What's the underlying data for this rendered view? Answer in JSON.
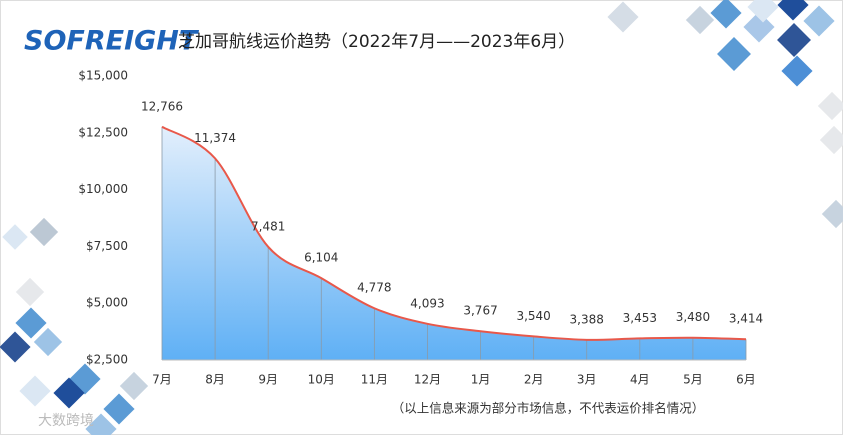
{
  "brand": {
    "logo": "SOFREIGHT",
    "watermark": "大数跨境"
  },
  "chart_data": {
    "type": "area-line",
    "title": "芝加哥航线运价趋势（2022年7月——2023年6月）",
    "note": "（以上信息来源为部分市场信息，不代表运价排名情况）",
    "categories": [
      "7月",
      "8月",
      "9月",
      "10月",
      "11月",
      "12月",
      "1月",
      "2月",
      "3月",
      "4月",
      "5月",
      "6月"
    ],
    "values": [
      12766,
      11374,
      7481,
      6104,
      4778,
      4093,
      3767,
      3540,
      3388,
      3453,
      3480,
      3414
    ],
    "value_labels": [
      "12,766",
      "11,374",
      "7,481",
      "6,104",
      "4,778",
      "4,093",
      "3,767",
      "3,540",
      "3,388",
      "3,453",
      "3,480",
      "3,414"
    ],
    "color": "#e8584a",
    "ylim": [
      2500,
      15000
    ],
    "yticks": [
      {
        "value": 2500,
        "label": "$2,500"
      },
      {
        "value": 5000,
        "label": "$5,000"
      },
      {
        "value": 7500,
        "label": "$7,500"
      },
      {
        "value": 10000,
        "label": "$10,000"
      },
      {
        "value": 12500,
        "label": "$12,500"
      },
      {
        "value": 15000,
        "label": "$15,000"
      }
    ]
  }
}
